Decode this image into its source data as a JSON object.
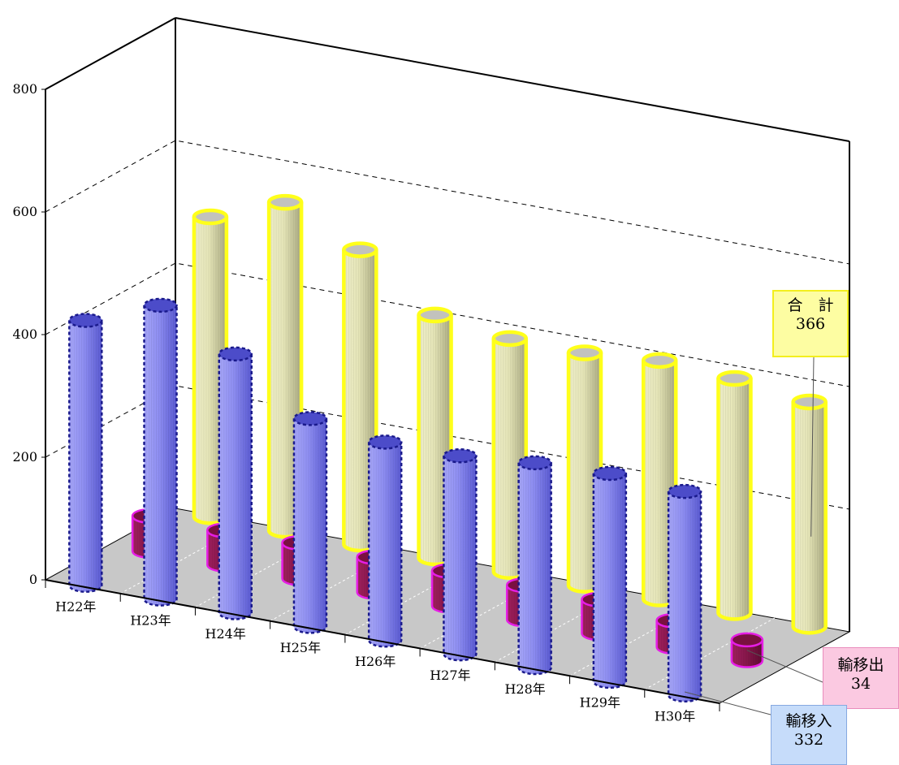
{
  "chart_data": {
    "type": "bar",
    "subtype": "3d-cylinder",
    "categories": [
      "H22年",
      "H23年",
      "H24年",
      "H25年",
      "H26年",
      "H27年",
      "H28年",
      "H29年",
      "H30年"
    ],
    "series": [
      {
        "name": "輸移入",
        "values": [
          432,
          479,
          422,
          339,
          323,
          323,
          334,
          339,
          332
        ],
        "color": "#8f8ff0",
        "outline": "#1a1a8c"
      },
      {
        "name": "輸移出",
        "values": [
          57,
          56,
          58,
          57,
          57,
          56,
          55,
          43,
          34
        ],
        "color": "#86164a",
        "outline": "#e51ee5"
      },
      {
        "name": "合計",
        "values": [
          489,
          535,
          480,
          396,
          380,
          379,
          389,
          382,
          366
        ],
        "color": "#e9e9bd",
        "outline": "#ffff1a"
      }
    ],
    "ylim": [
      0,
      800
    ],
    "yticks": [
      0,
      200,
      400,
      600,
      800
    ],
    "grid": true,
    "legend": "callouts-right",
    "callouts": {
      "total": {
        "label": "合　計",
        "value": "366"
      },
      "outflow": {
        "label": "輸移出",
        "value": "34"
      },
      "inflow": {
        "label": "輸移入",
        "value": "332"
      }
    }
  }
}
